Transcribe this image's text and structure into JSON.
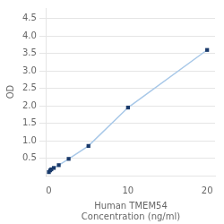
{
  "chart_data": {
    "type": "line",
    "xlabel": "Human TMEM54\nConcentration (ng/ml)",
    "ylabel": "OD",
    "x": [
      0,
      0.156,
      0.313,
      0.625,
      1.25,
      2.5,
      5,
      10,
      20
    ],
    "series": [
      {
        "type": "line",
        "color": "#a8c8e8",
        "marker": "none",
        "line_style": "solid",
        "values": [
          0.1,
          0.15,
          0.18,
          0.22,
          0.3,
          0.48,
          0.85,
          1.95,
          3.6
        ]
      },
      {
        "type": "scatter",
        "color": "#1a3a6b",
        "marker": "square",
        "values": [
          0.1,
          0.15,
          0.18,
          0.22,
          0.3,
          0.48,
          0.85,
          1.95,
          3.6
        ]
      }
    ],
    "xlim": [
      -0.3,
      21
    ],
    "xticks": [
      0,
      10,
      20
    ],
    "ylim": [
      0,
      4.8
    ],
    "yticks": [
      0.5,
      {
        "value": 1.0,
        "label": "1.0"
      },
      1.5,
      {
        "value": 2.0,
        "label": "2.0"
      },
      2.5,
      {
        "value": 3.0,
        "label": "3.0"
      },
      3.5,
      {
        "value": 4.0,
        "label": "4.0"
      },
      4.5
    ],
    "grid": "y",
    "background_color": "#ffffff"
  }
}
